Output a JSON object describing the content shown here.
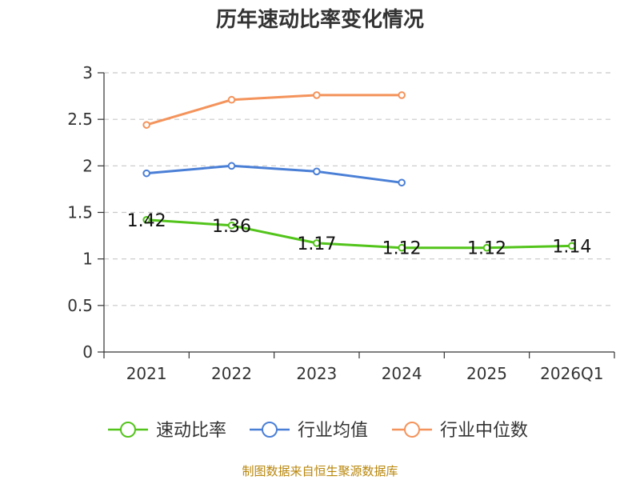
{
  "chart_data": {
    "type": "line",
    "title": "历年速动比率变化情况",
    "categories": [
      "2021",
      "2022",
      "2023",
      "2024",
      "2025",
      "2026Q1"
    ],
    "ylim": [
      0,
      3
    ],
    "yticks": [
      "0",
      "0.5",
      "1",
      "1.5",
      "2",
      "2.5",
      "3"
    ],
    "grid": true,
    "legend_position": "bottom",
    "series": [
      {
        "name": "速动比率",
        "color": "#52c41a",
        "values": [
          1.42,
          1.36,
          1.17,
          1.12,
          1.12,
          1.14
        ],
        "labels": [
          "1.42",
          "1.36",
          "1.17",
          "1.12",
          "1.12",
          "1.14"
        ]
      },
      {
        "name": "行业均值",
        "color": "#4a7fd6",
        "values": [
          1.92,
          2.0,
          1.94,
          1.82,
          null,
          null
        ]
      },
      {
        "name": "行业中位数",
        "color": "#f4935b",
        "values": [
          2.44,
          2.71,
          2.76,
          2.76,
          null,
          null
        ]
      }
    ]
  },
  "source": "制图数据来自恒生聚源数据库"
}
